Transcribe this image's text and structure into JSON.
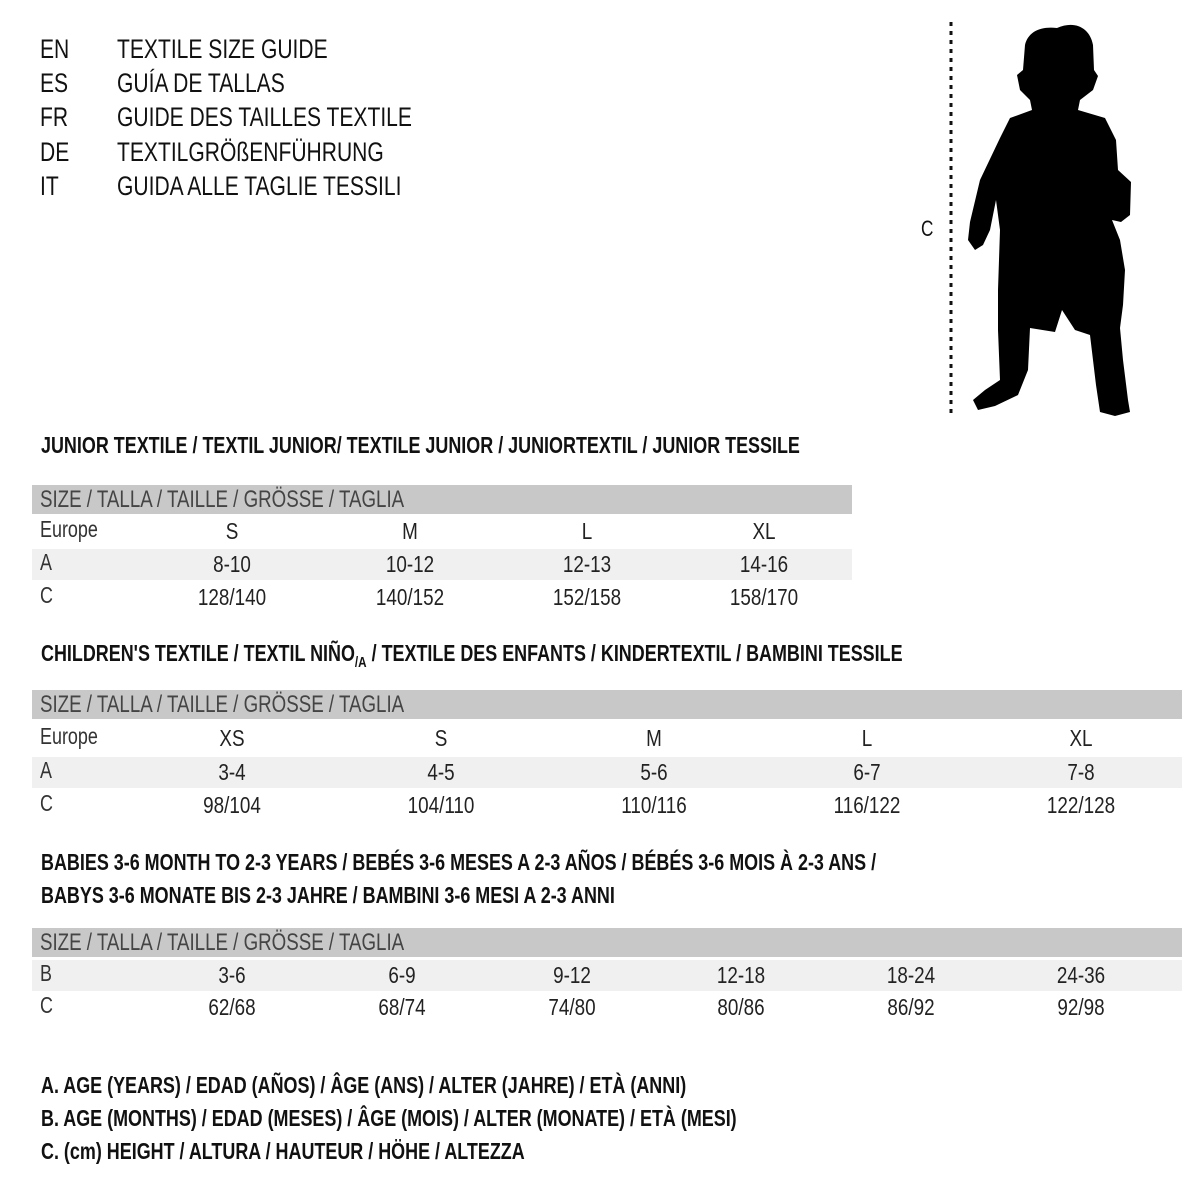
{
  "title_languages": [
    {
      "code": "EN",
      "text": "TEXTILE SIZE GUIDE"
    },
    {
      "code": "ES",
      "text": "GUÍA DE TALLAS"
    },
    {
      "code": "FR",
      "text": "GUIDE DES TAILLES TEXTILE"
    },
    {
      "code": "DE",
      "text": "TEXTILGRÖßENFÜHRUNG"
    },
    {
      "code": "IT",
      "text": "GUIDA ALLE TAGLIE TESSILI"
    }
  ],
  "figure": {
    "measure_label": "C",
    "icon": "child-silhouette"
  },
  "size_header": "SIZE / TALLA / TAILLE / GRÖSSE / TAGLIA",
  "junior": {
    "heading": "JUNIOR TEXTILE / TEXTIL JUNIOR/ TEXTILE JUNIOR / JUNIORTEXTIL / JUNIOR TESSILE",
    "rows": [
      {
        "label": "Europe",
        "values": [
          "S",
          "M",
          "L",
          "XL"
        ]
      },
      {
        "label": "A",
        "values": [
          "8-10",
          "10-12",
          "12-13",
          "14-16"
        ]
      },
      {
        "label": "C",
        "values": [
          "128/140",
          "140/152",
          "152/158",
          "158/170"
        ]
      }
    ]
  },
  "children": {
    "heading_pre": "CHILDREN'S TEXTILE / TEXTIL NIÑO",
    "heading_sub": "/A",
    "heading_post": " / TEXTILE DES ENFANTS / KINDERTEXTIL / BAMBINI TESSILE",
    "rows": [
      {
        "label": "Europe",
        "values": [
          "XS",
          "S",
          "M",
          "L",
          "XL"
        ]
      },
      {
        "label": "A",
        "values": [
          "3-4",
          "4-5",
          "5-6",
          "6-7",
          "7-8"
        ]
      },
      {
        "label": "C",
        "values": [
          "98/104",
          "104/110",
          "110/116",
          "116/122",
          "122/128"
        ]
      }
    ]
  },
  "babies": {
    "heading_line1": "BABIES 3-6 MONTH TO 2-3 YEARS / BEBÉS 3-6 MESES A 2-3 AÑOS / BÉBÉS 3-6 MOIS À 2-3 ANS /",
    "heading_line2": "BABYS 3-6 MONATE BIS 2-3 JAHRE / BAMBINI 3-6 MESI A 2-3 ANNI",
    "rows": [
      {
        "label": "B",
        "values": [
          "3-6",
          "6-9",
          "9-12",
          "12-18",
          "18-24",
          "24-36"
        ]
      },
      {
        "label": "C",
        "values": [
          "62/68",
          "68/74",
          "74/80",
          "80/86",
          "86/92",
          "92/98"
        ]
      }
    ]
  },
  "legend": [
    "A. AGE (YEARS) / EDAD (AÑOS) / ÂGE (ANS) / ALTER (JAHRE) / ETÀ (ANNI)",
    "B. AGE (MONTHS) / EDAD (MESES) / ÂGE (MOIS) / ALTER (MONATE) / ETÀ (MESI)",
    "C. (cm) HEIGHT / ALTURA / HAUTEUR / HÖHE / ALTEZZA"
  ],
  "colors": {
    "header_bar": "#c8c8c8",
    "shaded_row": "#f0f0f0"
  }
}
